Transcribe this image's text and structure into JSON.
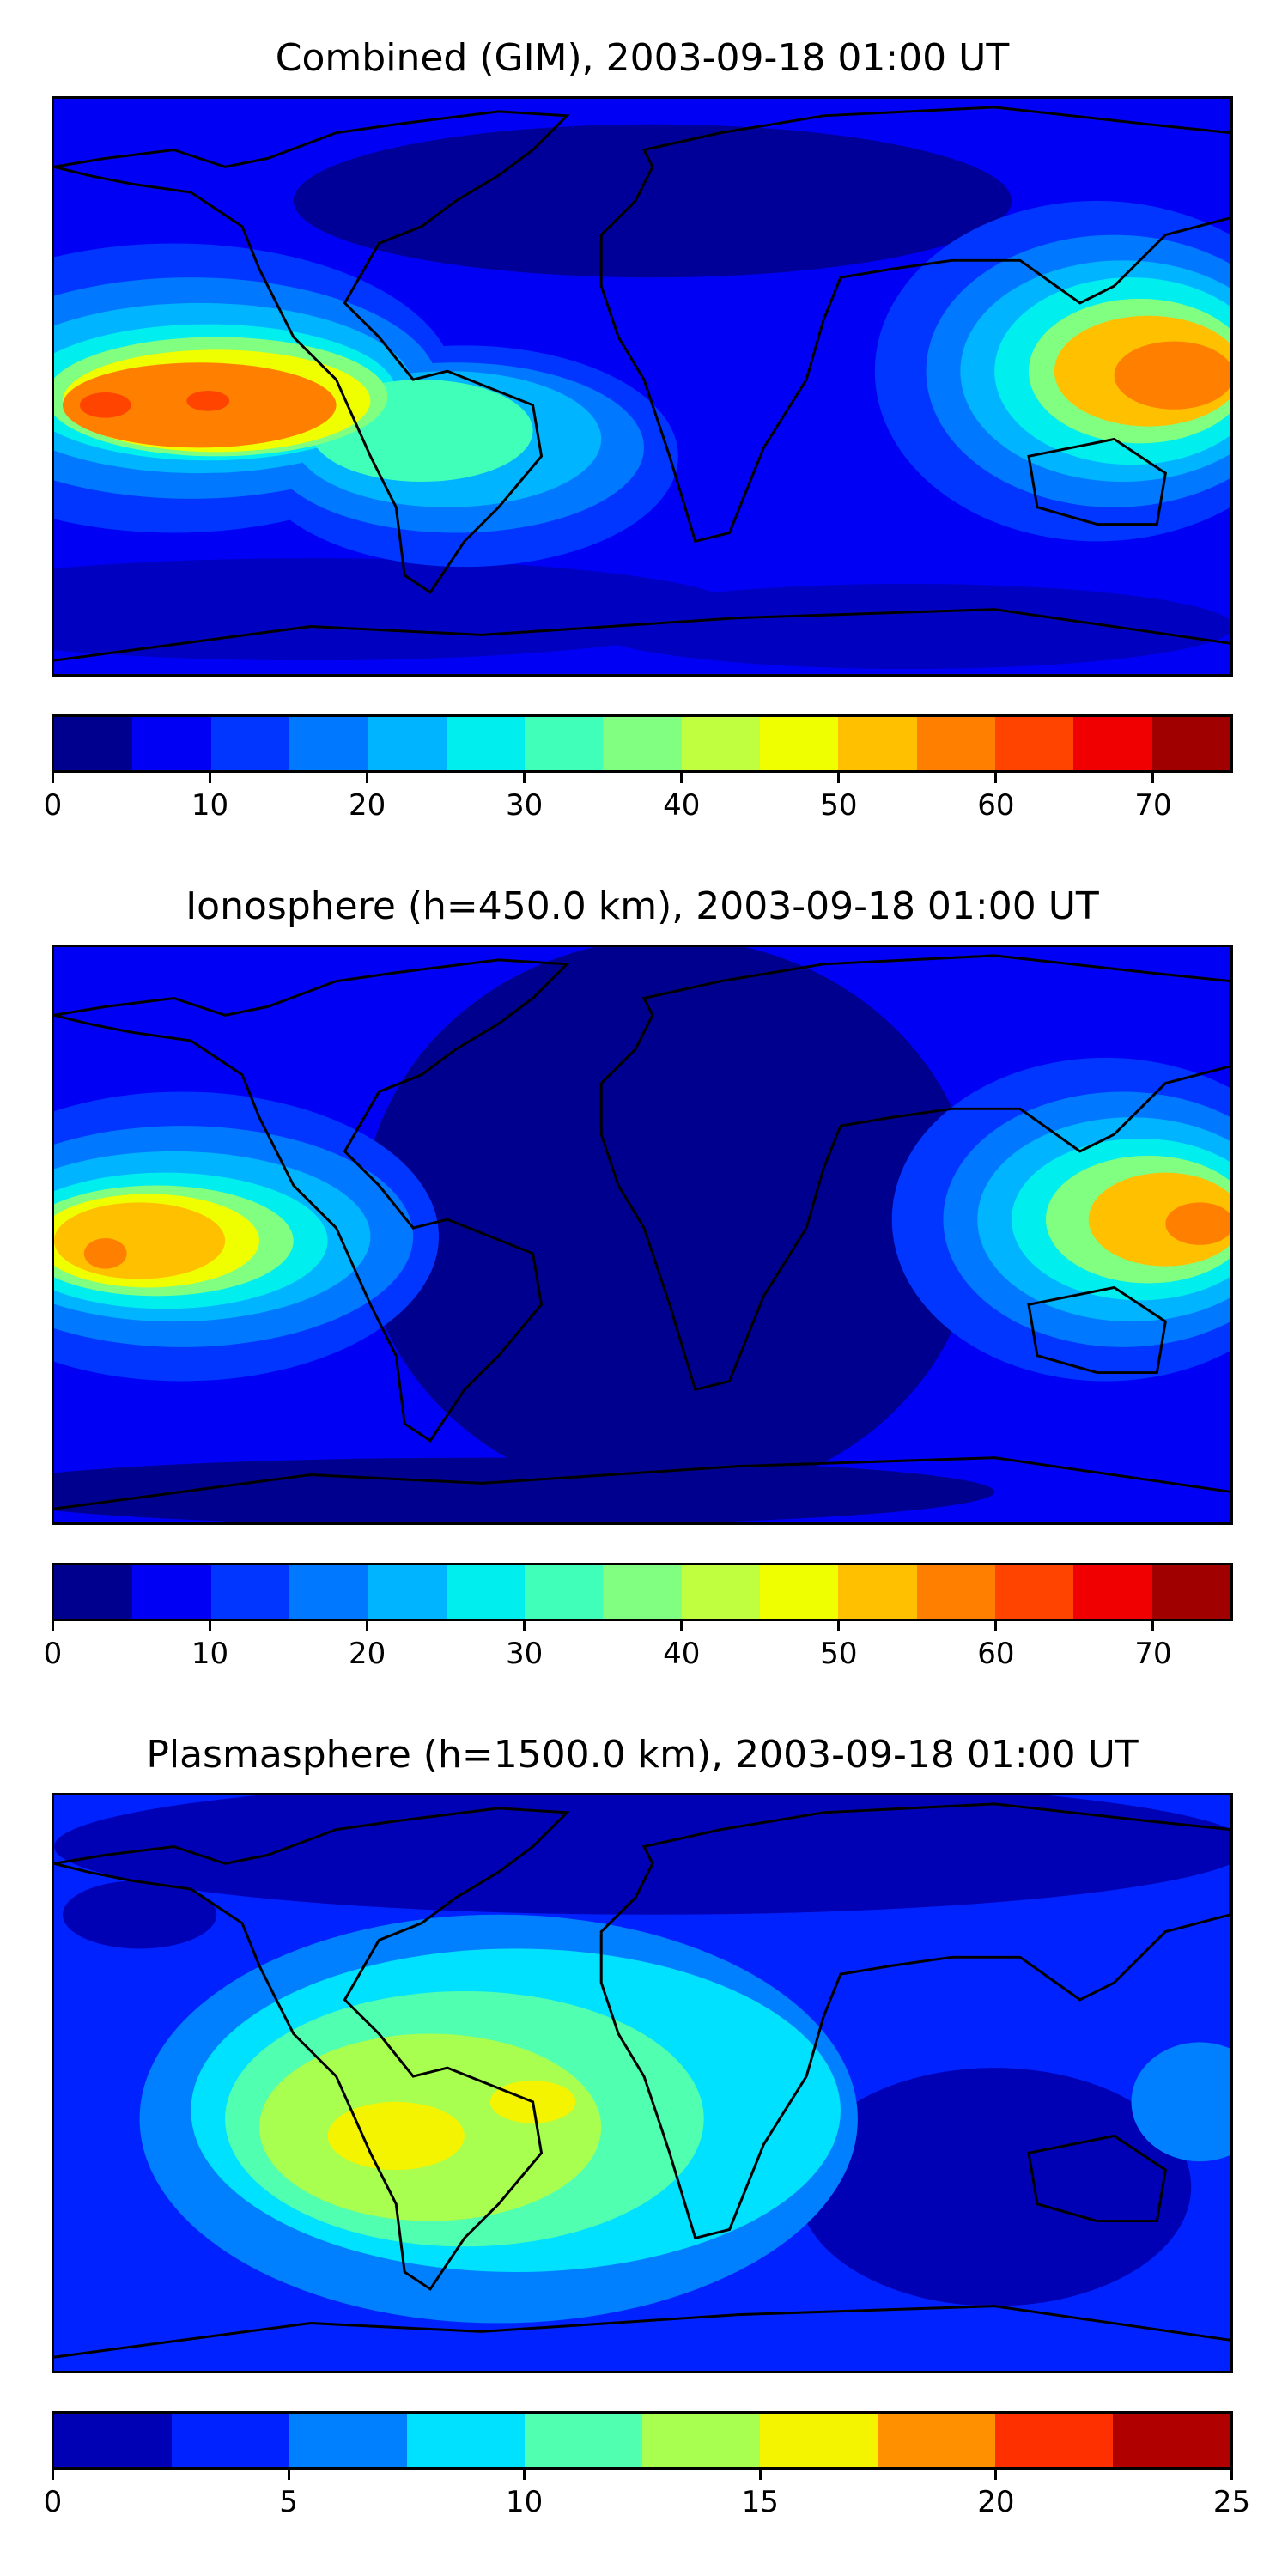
{
  "panels": [
    {
      "title": "Combined (GIM), 2003-09-18 01:00 UT",
      "colorbar_ticks": [
        "0",
        "10",
        "20",
        "30",
        "40",
        "50",
        "60",
        "70"
      ],
      "colorbar_range": [
        0,
        75
      ],
      "colorbar_step": 5,
      "colors": [
        "#00008f",
        "#0000f5",
        "#0036ff",
        "#0078ff",
        "#00b4ff",
        "#00eeee",
        "#40ffb8",
        "#80ff80",
        "#bfff40",
        "#f0ff00",
        "#ffc000",
        "#ff8000",
        "#ff4400",
        "#f00000",
        "#a00000"
      ]
    },
    {
      "title": "Ionosphere  (h=450.0 km), 2003-09-18 01:00 UT",
      "colorbar_ticks": [
        "0",
        "10",
        "20",
        "30",
        "40",
        "50",
        "60",
        "70"
      ],
      "colorbar_range": [
        0,
        75
      ],
      "colorbar_step": 5,
      "colors": [
        "#00008f",
        "#0000f5",
        "#0036ff",
        "#0078ff",
        "#00b4ff",
        "#00eeee",
        "#40ffb8",
        "#80ff80",
        "#bfff40",
        "#f0ff00",
        "#ffc000",
        "#ff8000",
        "#ff4400",
        "#f00000",
        "#a00000"
      ]
    },
    {
      "title": "Plasmasphere (h=1500.0 km), 2003-09-18 01:00 UT",
      "colorbar_ticks": [
        "0",
        "5",
        "10",
        "15",
        "20",
        "25"
      ],
      "colorbar_range": [
        0,
        25
      ],
      "colorbar_step": 2.5,
      "colors": [
        "#0000b4",
        "#0022ff",
        "#0080ff",
        "#00e0ff",
        "#50ffb0",
        "#a8ff50",
        "#f4f400",
        "#ff9000",
        "#ff3000",
        "#b00000"
      ]
    }
  ]
}
